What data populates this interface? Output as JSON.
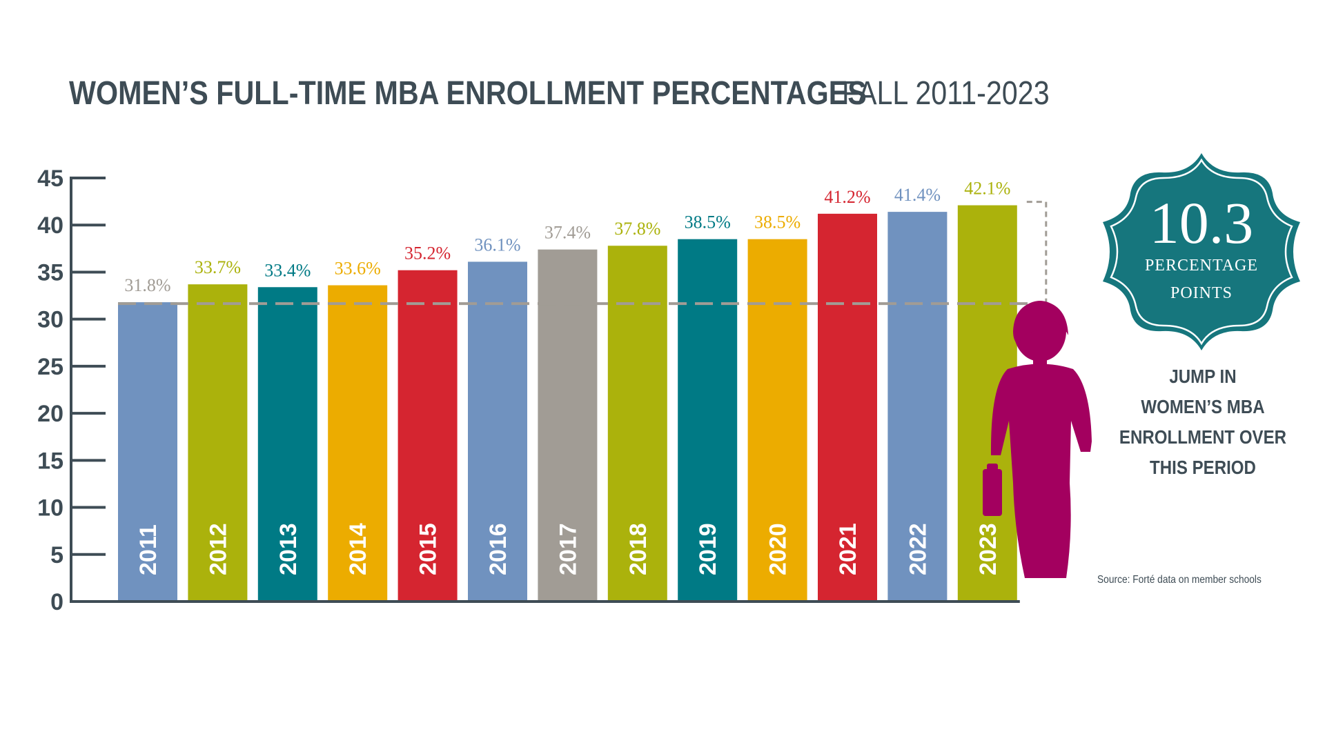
{
  "title": "WOMEN’S FULL-TIME MBA ENROLLMENT PERCENTAGES",
  "subtitle": "FALL 2011-2023",
  "callout": {
    "number": "10.3",
    "line1": "PERCENTAGE",
    "line2": "POINTS",
    "caption": [
      "JUMP IN",
      "WOMEN’S MBA",
      "ENROLLMENT OVER",
      "THIS PERIOD"
    ]
  },
  "source": "Source: Forté data on member schools",
  "colors": {
    "blue": "#7092bf",
    "olive": "#abb20c",
    "teal": "#007a85",
    "amber": "#ecac00",
    "red": "#d52530",
    "gray": "#a19c95",
    "magenta": "#a3005f",
    "axis": "#3e4c55",
    "badge": "#16767d"
  },
  "icon": "businesswoman-icon",
  "chart_data": {
    "type": "bar",
    "categories": [
      "2011",
      "2012",
      "2013",
      "2014",
      "2015",
      "2016",
      "2017",
      "2018",
      "2019",
      "2020",
      "2021",
      "2022",
      "2023"
    ],
    "values": [
      31.8,
      33.7,
      33.4,
      33.6,
      35.2,
      36.1,
      37.4,
      37.8,
      38.5,
      38.5,
      41.2,
      41.4,
      42.1
    ],
    "labels": [
      "31.8%",
      "33.7%",
      "33.4%",
      "33.6%",
      "35.2%",
      "36.1%",
      "37.4%",
      "37.8%",
      "38.5%",
      "38.5%",
      "41.2%",
      "41.4%",
      "42.1%"
    ],
    "bar_colors": [
      "#7092bf",
      "#abb20c",
      "#007a85",
      "#ecac00",
      "#d52530",
      "#7092bf",
      "#a19c95",
      "#abb20c",
      "#007a85",
      "#ecac00",
      "#d52530",
      "#7092bf",
      "#abb20c"
    ],
    "label_colors": [
      "#a19c95",
      "#abb20c",
      "#007a85",
      "#ecac00",
      "#d52530",
      "#7092bf",
      "#a19c95",
      "#abb20c",
      "#007a85",
      "#ecac00",
      "#d52530",
      "#7092bf",
      "#abb20c"
    ],
    "yticks": [
      "0",
      "5",
      "10",
      "15",
      "20",
      "25",
      "30",
      "35",
      "40",
      "45"
    ],
    "ylim": [
      0,
      45
    ],
    "reference_value": 31.8,
    "grid": false,
    "legend": "none"
  }
}
